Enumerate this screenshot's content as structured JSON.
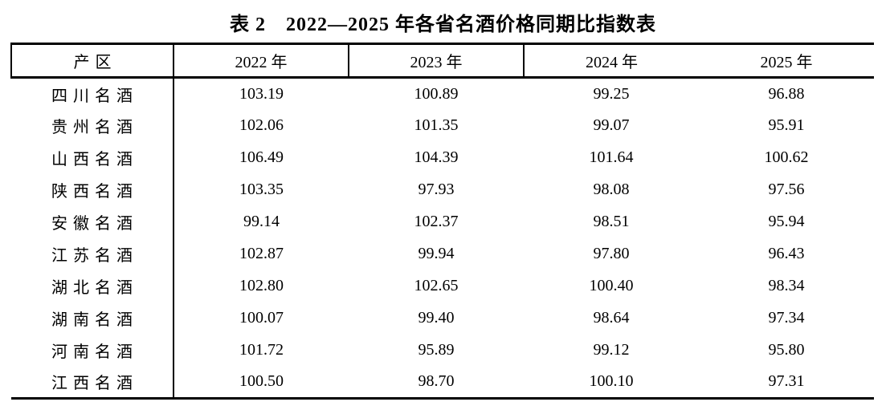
{
  "title": "表 2　2022—2025 年各省名酒价格同期比指数表",
  "table": {
    "columns": [
      "产区",
      "2022 年",
      "2023 年",
      "2024 年",
      "2025 年"
    ],
    "rows": [
      {
        "region": "四川名酒",
        "values": [
          "103.19",
          "100.89",
          "99.25",
          "96.88"
        ]
      },
      {
        "region": "贵州名酒",
        "values": [
          "102.06",
          "101.35",
          "99.07",
          "95.91"
        ]
      },
      {
        "region": "山西名酒",
        "values": [
          "106.49",
          "104.39",
          "101.64",
          "100.62"
        ]
      },
      {
        "region": "陕西名酒",
        "values": [
          "103.35",
          "97.93",
          "98.08",
          "97.56"
        ]
      },
      {
        "region": "安徽名酒",
        "values": [
          "99.14",
          "102.37",
          "98.51",
          "95.94"
        ]
      },
      {
        "region": "江苏名酒",
        "values": [
          "102.87",
          "99.94",
          "97.80",
          "96.43"
        ]
      },
      {
        "region": "湖北名酒",
        "values": [
          "102.80",
          "102.65",
          "100.40",
          "98.34"
        ]
      },
      {
        "region": "湖南名酒",
        "values": [
          "100.07",
          "99.40",
          "98.64",
          "97.34"
        ]
      },
      {
        "region": "河南名酒",
        "values": [
          "101.72",
          "95.89",
          "99.12",
          "95.80"
        ]
      },
      {
        "region": "江西名酒",
        "values": [
          "100.50",
          "98.70",
          "100.10",
          "97.31"
        ]
      }
    ]
  },
  "colors": {
    "text": "#000000",
    "background": "#ffffff",
    "border": "#000000"
  },
  "chart_data": {
    "type": "table",
    "title": "表 2 2022—2025 年各省名酒价格同期比指数表",
    "row_header": "产区",
    "categories": [
      "2022 年",
      "2023 年",
      "2024 年",
      "2025 年"
    ],
    "series": [
      {
        "name": "四川名酒",
        "values": [
          103.19,
          100.89,
          99.25,
          96.88
        ]
      },
      {
        "name": "贵州名酒",
        "values": [
          102.06,
          101.35,
          99.07,
          95.91
        ]
      },
      {
        "name": "山西名酒",
        "values": [
          106.49,
          104.39,
          101.64,
          100.62
        ]
      },
      {
        "name": "陕西名酒",
        "values": [
          103.35,
          97.93,
          98.08,
          97.56
        ]
      },
      {
        "name": "安徽名酒",
        "values": [
          99.14,
          102.37,
          98.51,
          95.94
        ]
      },
      {
        "name": "江苏名酒",
        "values": [
          102.87,
          99.94,
          97.8,
          96.43
        ]
      },
      {
        "name": "湖北名酒",
        "values": [
          102.8,
          102.65,
          100.4,
          98.34
        ]
      },
      {
        "name": "湖南名酒",
        "values": [
          100.07,
          99.4,
          98.64,
          97.34
        ]
      },
      {
        "name": "河南名酒",
        "values": [
          101.72,
          95.89,
          99.12,
          95.8
        ]
      },
      {
        "name": "江西名酒",
        "values": [
          100.5,
          98.7,
          100.1,
          97.31
        ]
      }
    ]
  }
}
